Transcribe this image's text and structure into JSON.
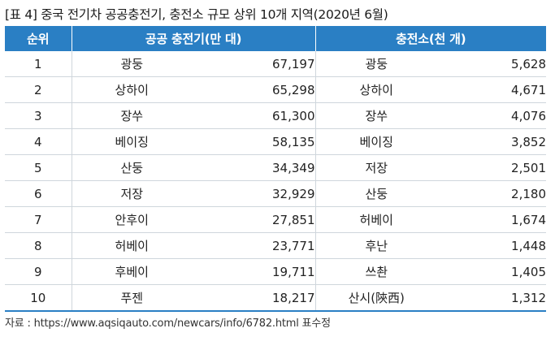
{
  "title": {
    "tag": "[표 4]",
    "text": "중국 전기차 공공충전기, 충전소 규모 상위 10개 지역(2020년 6월)"
  },
  "headers": {
    "rank": "순위",
    "chargers": "공공 충전기(만 대)",
    "stations": "충전소(천 개)"
  },
  "rows": [
    {
      "rank": "1",
      "charger_region": "광둥",
      "charger_value": "67,197",
      "station_region": "광둥",
      "station_value": "5,628"
    },
    {
      "rank": "2",
      "charger_region": "상하이",
      "charger_value": "65,298",
      "station_region": "상하이",
      "station_value": "4,671"
    },
    {
      "rank": "3",
      "charger_region": "장쑤",
      "charger_value": "61,300",
      "station_region": "장쑤",
      "station_value": "4,076"
    },
    {
      "rank": "4",
      "charger_region": "베이징",
      "charger_value": "58,135",
      "station_region": "베이징",
      "station_value": "3,852"
    },
    {
      "rank": "5",
      "charger_region": "산둥",
      "charger_value": "34,349",
      "station_region": "저장",
      "station_value": "2,501"
    },
    {
      "rank": "6",
      "charger_region": "저장",
      "charger_value": "32,929",
      "station_region": "산둥",
      "station_value": "2,180"
    },
    {
      "rank": "7",
      "charger_region": "안후이",
      "charger_value": "27,851",
      "station_region": "허베이",
      "station_value": "1,674"
    },
    {
      "rank": "8",
      "charger_region": "허베이",
      "charger_value": "23,771",
      "station_region": "후난",
      "station_value": "1,448"
    },
    {
      "rank": "9",
      "charger_region": "후베이",
      "charger_value": "19,711",
      "station_region": "쓰촨",
      "station_value": "1,405"
    },
    {
      "rank": "10",
      "charger_region": "푸젠",
      "charger_value": "18,217",
      "station_region": "산시(陝西)",
      "station_value": "1,312"
    }
  ],
  "source": "자료 : https://www.aqsiqauto.com/newcars/info/6782.html 표수정",
  "colors": {
    "header_bg": "#2a7fc4",
    "grid": "#cfd6dc"
  }
}
